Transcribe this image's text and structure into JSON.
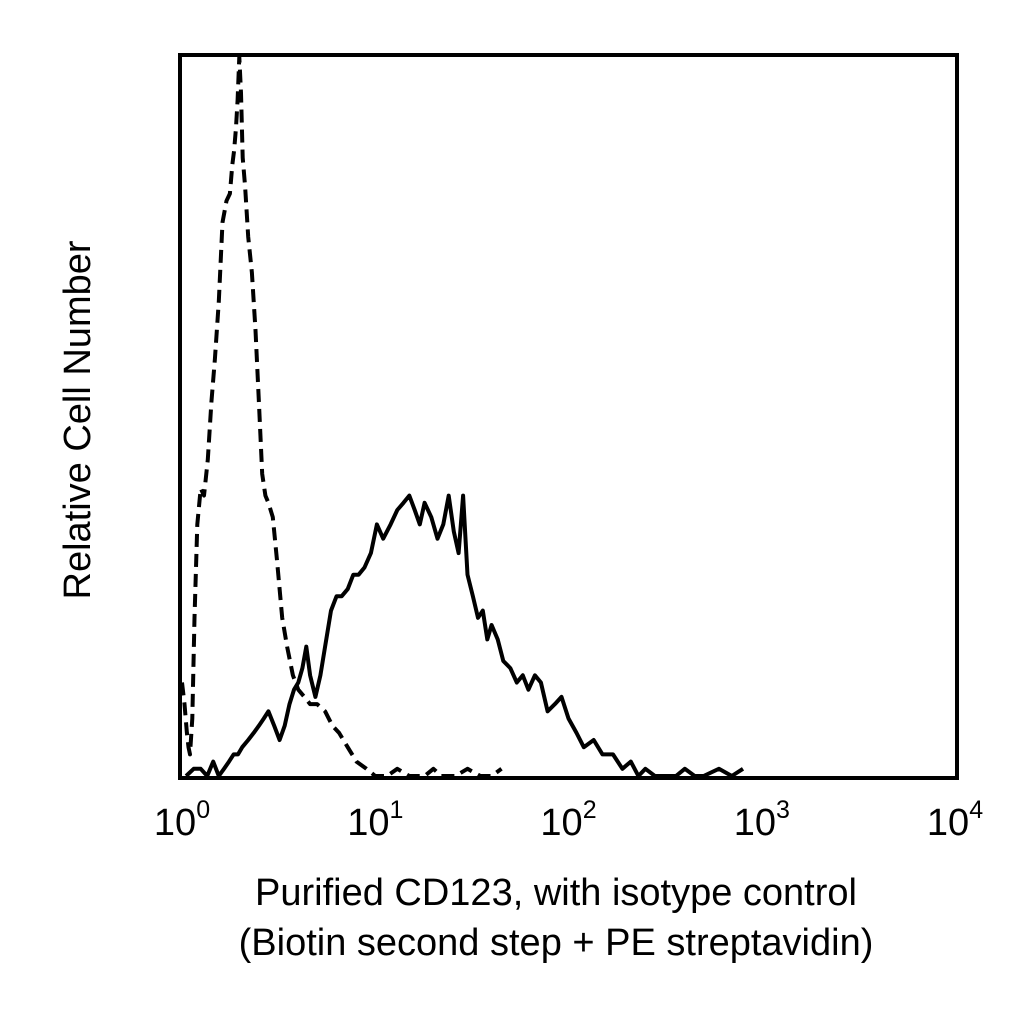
{
  "chart_data": {
    "type": "line",
    "xlabel": [
      "Purified CD123, with isotype control",
      "(Biotin second step + PE streptavidin)"
    ],
    "ylabel": "Relative Cell Number",
    "x_scale": "log",
    "xlim": [
      1,
      10000
    ],
    "ylim": [
      0,
      100
    ],
    "x_ticks": [
      {
        "value": 1,
        "base": "10",
        "exp": "0"
      },
      {
        "value": 10,
        "base": "10",
        "exp": "1"
      },
      {
        "value": 100,
        "base": "10",
        "exp": "2"
      },
      {
        "value": 1000,
        "base": "10",
        "exp": "3"
      },
      {
        "value": 10000,
        "base": "10",
        "exp": "4"
      }
    ],
    "grid": false,
    "legend": "none",
    "series": [
      {
        "style": "dashed",
        "color": "#000000",
        "x": [
          1.0,
          1.03,
          1.06,
          1.08,
          1.1,
          1.13,
          1.16,
          1.2,
          1.25,
          1.3,
          1.36,
          1.42,
          1.48,
          1.55,
          1.62,
          1.7,
          1.77,
          1.82,
          1.86,
          1.9,
          1.94,
          1.98,
          2.02,
          2.06,
          2.12,
          2.2,
          2.3,
          2.4,
          2.5,
          2.6,
          2.7,
          2.8,
          2.95,
          3.1,
          3.3,
          3.5,
          3.75,
          4.0,
          4.3,
          4.6,
          5.0,
          5.5,
          6.0,
          6.5,
          7.2,
          8.0,
          9.0,
          10.0,
          11.5,
          13.0,
          15.0,
          18.0,
          20.0,
          22.0,
          26.0,
          30.0,
          35.0,
          40.0,
          45.0
        ],
        "y": [
          13,
          10,
          6,
          4,
          3,
          8,
          22,
          35,
          40,
          39,
          44,
          52,
          58,
          66,
          77,
          80,
          81,
          85,
          87,
          90,
          94,
          100,
          95,
          86,
          82,
          75,
          70,
          62,
          52,
          42,
          39,
          38,
          36,
          30,
          22,
          18,
          14,
          12,
          11,
          10,
          10,
          9,
          7,
          6,
          4,
          2,
          1,
          0,
          0,
          1,
          0,
          0,
          1,
          0,
          0,
          1,
          0,
          0,
          1
        ]
      },
      {
        "style": "solid",
        "color": "#000000",
        "x": [
          1.05,
          1.15,
          1.25,
          1.35,
          1.45,
          1.55,
          1.65,
          1.75,
          1.85,
          1.95,
          2.05,
          2.2,
          2.35,
          2.5,
          2.65,
          2.8,
          3.0,
          3.2,
          3.4,
          3.6,
          3.8,
          4.0,
          4.2,
          4.4,
          4.6,
          4.9,
          5.2,
          5.5,
          5.9,
          6.3,
          6.7,
          7.2,
          7.7,
          8.2,
          8.8,
          9.5,
          10.2,
          11.0,
          12.0,
          13.0,
          14.0,
          15.0,
          16.0,
          17.0,
          18.0,
          19.5,
          21.0,
          22.5,
          24.0,
          25.5,
          27.0,
          28.5,
          30.0,
          32.0,
          34.0,
          36.0,
          38.0,
          40.0,
          43.0,
          46.0,
          50.0,
          54.0,
          58.0,
          62.0,
          67.0,
          72.0,
          78.0,
          85.0,
          92.0,
          100.0,
          110.0,
          120.0,
          135.0,
          150.0,
          170.0,
          190.0,
          210.0,
          230.0,
          250.0,
          280.0,
          320.0,
          360.0,
          400.0,
          450.0,
          500.0,
          600.0,
          700.0,
          800.0
        ],
        "y": [
          0,
          1,
          1,
          0,
          2,
          0,
          1,
          2,
          3,
          3,
          4,
          5,
          6,
          7,
          8,
          9,
          7,
          5,
          7,
          10,
          12,
          13,
          15,
          18,
          14,
          11,
          14,
          18,
          23,
          25,
          25,
          26,
          28,
          28,
          29,
          31,
          35,
          33,
          35,
          37,
          38,
          39,
          37,
          35,
          38,
          36,
          33,
          35,
          39,
          34,
          31,
          39,
          28,
          25,
          22,
          23,
          19,
          21,
          19,
          16,
          15,
          13,
          14,
          12,
          14,
          13,
          9,
          10,
          11,
          8,
          6,
          4,
          5,
          3,
          3,
          1,
          2,
          0,
          1,
          0,
          0,
          0,
          1,
          0,
          0,
          1,
          0,
          1
        ]
      }
    ]
  }
}
